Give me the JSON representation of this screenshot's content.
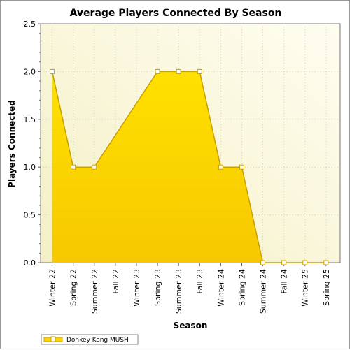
{
  "chart_data": {
    "type": "area",
    "title": "Average Players Connected By Season",
    "xlabel": "Season",
    "ylabel": "Players Connected",
    "categories": [
      "Winter 22",
      "Spring 22",
      "Summer 22",
      "Fall 22",
      "Winter 23",
      "Spring 23",
      "Summer 23",
      "Fall 23",
      "Winter 24",
      "Spring 24",
      "Summer 24",
      "Fall 24",
      "Winter 25",
      "Spring 25"
    ],
    "series": [
      {
        "name": "Donkey Kong MUSH",
        "color": "#ffd700",
        "stroke": "#c8a000",
        "values": [
          2.0,
          1.0,
          1.0,
          null,
          null,
          2.0,
          2.0,
          2.0,
          1.0,
          1.0,
          0.0,
          0.0,
          0.0,
          0.0
        ]
      }
    ],
    "ylim": [
      0,
      2.5
    ],
    "yticks": [
      "0.0",
      "0.5",
      "1.0",
      "1.5",
      "2.0",
      "2.5"
    ],
    "grid": true,
    "legend_position": "bottom-left"
  }
}
